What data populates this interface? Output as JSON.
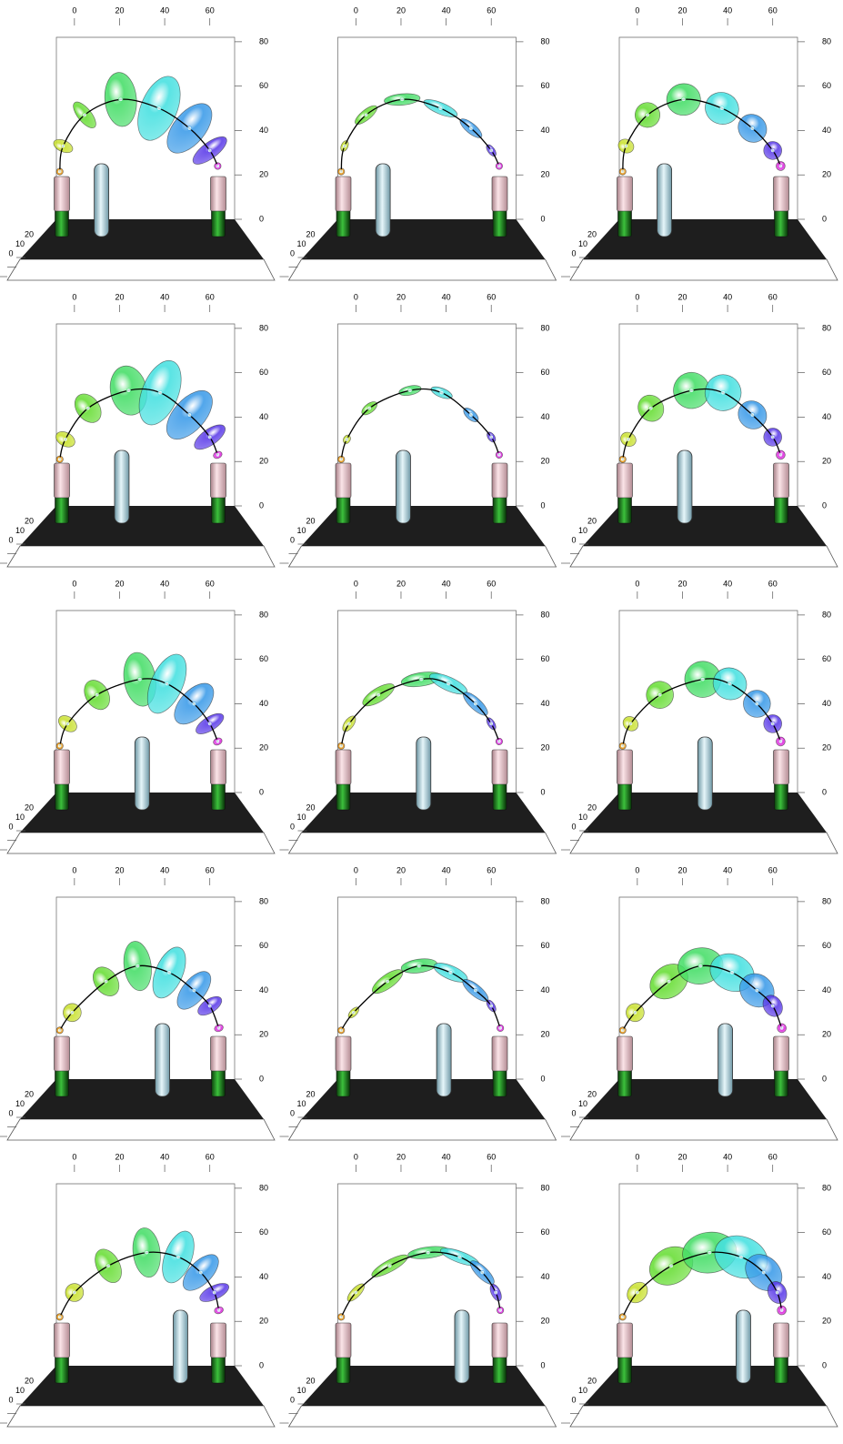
{
  "chart_data": [
    {
      "type": "scene3d",
      "xlim": [
        -8,
        71
      ],
      "zlim": [
        0,
        82
      ],
      "ylim": [
        0,
        20
      ],
      "xticks": [
        0,
        20,
        40,
        60
      ],
      "zticks": [
        0,
        20,
        40,
        60,
        80
      ],
      "yticks": [
        0,
        10,
        20
      ],
      "pillar_x": 12,
      "x": [
        -6.5,
        -5,
        4.5,
        20.5,
        37.5,
        51,
        60,
        63.5
      ],
      "z": [
        21.5,
        33,
        47,
        54,
        50,
        41,
        31,
        24
      ],
      "length": [
        1.5,
        2.5,
        3,
        7,
        8,
        7,
        3.5,
        1.5
      ],
      "width": [
        1.5,
        4.5,
        7,
        12,
        15,
        13,
        9,
        1.5
      ],
      "colors": [
        "#e8900a",
        "#c8e02a",
        "#66dd33",
        "#44dd66",
        "#44e0e0",
        "#3a9ae8",
        "#5a3ae8",
        "#dd22dd"
      ]
    },
    {
      "type": "scene3d",
      "xlim": [
        -8,
        71
      ],
      "zlim": [
        0,
        82
      ],
      "ylim": [
        0,
        20
      ],
      "xticks": [
        0,
        20,
        40,
        60
      ],
      "zticks": [
        0,
        20,
        40,
        60,
        80
      ],
      "yticks": [
        0,
        10,
        20
      ],
      "pillar_x": 12,
      "x": [
        -6.5,
        -5,
        4.5,
        20.5,
        37.5,
        51,
        60,
        63.5
      ],
      "z": [
        21.5,
        33,
        47,
        54,
        50,
        41,
        31,
        24
      ],
      "length": [
        1.5,
        2.5,
        6,
        8,
        8,
        6,
        3,
        1.5
      ],
      "width": [
        1.5,
        1.5,
        2.2,
        2.5,
        2.5,
        2.2,
        1.5,
        1.5
      ],
      "colors": [
        "#e8900a",
        "#c8e02a",
        "#66dd33",
        "#44dd66",
        "#44e0e0",
        "#3a9ae8",
        "#5a3ae8",
        "#dd22dd"
      ]
    },
    {
      "type": "scene3d",
      "xlim": [
        -8,
        71
      ],
      "zlim": [
        0,
        82
      ],
      "ylim": [
        0,
        20
      ],
      "xticks": [
        0,
        20,
        40,
        60
      ],
      "zticks": [
        0,
        20,
        40,
        60,
        80
      ],
      "yticks": [
        0,
        10,
        20
      ],
      "pillar_x": 12,
      "x": [
        -6.5,
        -5,
        4.5,
        20.5,
        37.5,
        51,
        60,
        63.5
      ],
      "z": [
        21.5,
        33,
        47,
        54,
        50,
        41,
        31,
        24
      ],
      "length": [
        1.5,
        3,
        5.5,
        7.5,
        7.5,
        6.5,
        4,
        2
      ],
      "width": [
        1.5,
        3.5,
        5.5,
        7,
        7,
        6,
        4,
        2
      ],
      "colors": [
        "#e8900a",
        "#c8e02a",
        "#66dd33",
        "#44dd66",
        "#44e0e0",
        "#3a9ae8",
        "#5a3ae8",
        "#dd22dd"
      ]
    },
    {
      "type": "scene3d",
      "xlim": [
        -8,
        71
      ],
      "zlim": [
        0,
        82
      ],
      "ylim": [
        0,
        20
      ],
      "xticks": [
        0,
        20,
        40,
        60
      ],
      "zticks": [
        0,
        20,
        40,
        60,
        80
      ],
      "yticks": [
        0,
        10,
        20
      ],
      "pillar_x": 21,
      "x": [
        -6.5,
        -4,
        6,
        24,
        38,
        51,
        60,
        63.5
      ],
      "z": [
        21,
        30,
        44,
        52,
        51,
        41,
        31,
        23
      ],
      "length": [
        1.5,
        3,
        5,
        8,
        8,
        7,
        3.5,
        1.5
      ],
      "width": [
        1.5,
        4.5,
        7,
        11,
        15,
        13,
        8,
        2
      ],
      "colors": [
        "#e8900a",
        "#c8e02a",
        "#66dd33",
        "#44dd66",
        "#44e0e0",
        "#3a9ae8",
        "#5a3ae8",
        "#dd22dd"
      ]
    },
    {
      "type": "scene3d",
      "xlim": [
        -8,
        71
      ],
      "zlim": [
        0,
        82
      ],
      "ylim": [
        0,
        20
      ],
      "xticks": [
        0,
        20,
        40,
        60
      ],
      "zticks": [
        0,
        20,
        40,
        60,
        80
      ],
      "yticks": [
        0,
        10,
        20
      ],
      "pillar_x": 21,
      "x": [
        -6.5,
        -4,
        6,
        24,
        38,
        51,
        60,
        63.5
      ],
      "z": [
        21,
        30,
        44,
        52,
        51,
        41,
        31,
        23
      ],
      "length": [
        1.5,
        2,
        4,
        5,
        5,
        4,
        2.5,
        1.5
      ],
      "width": [
        1.5,
        1.5,
        2,
        2,
        2,
        2,
        1.5,
        1.5
      ],
      "colors": [
        "#e8900a",
        "#c8e02a",
        "#66dd33",
        "#44dd66",
        "#44e0e0",
        "#3a9ae8",
        "#5a3ae8",
        "#dd22dd"
      ]
    },
    {
      "type": "scene3d",
      "xlim": [
        -8,
        71
      ],
      "zlim": [
        0,
        82
      ],
      "ylim": [
        0,
        20
      ],
      "xticks": [
        0,
        20,
        40,
        60
      ],
      "zticks": [
        0,
        20,
        40,
        60,
        80
      ],
      "yticks": [
        0,
        10,
        20
      ],
      "pillar_x": 21,
      "x": [
        -6.5,
        -4,
        6,
        24,
        38,
        51,
        60,
        63.5
      ],
      "z": [
        21,
        30,
        44,
        52,
        51,
        41,
        31,
        23
      ],
      "length": [
        1.5,
        3,
        5.5,
        8,
        8,
        6.5,
        4,
        2
      ],
      "width": [
        1.5,
        3.5,
        6,
        8,
        8,
        6,
        4,
        2
      ],
      "colors": [
        "#e8900a",
        "#c8e02a",
        "#66dd33",
        "#44dd66",
        "#44e0e0",
        "#3a9ae8",
        "#5a3ae8",
        "#dd22dd"
      ]
    },
    {
      "type": "scene3d",
      "xlim": [
        -8,
        71
      ],
      "zlim": [
        0,
        82
      ],
      "ylim": [
        0,
        20
      ],
      "xticks": [
        0,
        20,
        40,
        60
      ],
      "zticks": [
        0,
        20,
        40,
        60,
        80
      ],
      "yticks": [
        0,
        10,
        20
      ],
      "pillar_x": 30,
      "x": [
        -6.5,
        -3,
        10,
        29,
        41,
        53,
        60,
        63.5
      ],
      "z": [
        21,
        31,
        44,
        51,
        49,
        40,
        31,
        23
      ],
      "length": [
        1.5,
        3,
        5,
        7,
        7,
        6,
        3,
        1.5
      ],
      "width": [
        1.5,
        4.5,
        7,
        12,
        14,
        11,
        7,
        2
      ],
      "colors": [
        "#e8900a",
        "#c8e02a",
        "#66dd33",
        "#44dd66",
        "#44e0e0",
        "#3a9ae8",
        "#5a3ae8",
        "#dd22dd"
      ]
    },
    {
      "type": "scene3d",
      "xlim": [
        -8,
        71
      ],
      "zlim": [
        0,
        82
      ],
      "ylim": [
        0,
        20
      ],
      "xticks": [
        0,
        20,
        40,
        60
      ],
      "zticks": [
        0,
        20,
        40,
        60,
        80
      ],
      "yticks": [
        0,
        10,
        20
      ],
      "pillar_x": 30,
      "x": [
        -6.5,
        -3,
        10,
        29,
        41,
        53,
        60,
        63.5
      ],
      "z": [
        21,
        31,
        44,
        51,
        49,
        40,
        31,
        23
      ],
      "length": [
        1.5,
        4,
        8,
        9,
        9,
        7,
        3,
        1.5
      ],
      "width": [
        1.5,
        2,
        3,
        3,
        3,
        2.5,
        1.5,
        1.5
      ],
      "colors": [
        "#e8900a",
        "#c8e02a",
        "#66dd33",
        "#44dd66",
        "#44e0e0",
        "#3a9ae8",
        "#5a3ae8",
        "#dd22dd"
      ]
    },
    {
      "type": "scene3d",
      "xlim": [
        -8,
        71
      ],
      "zlim": [
        0,
        82
      ],
      "ylim": [
        0,
        20
      ],
      "xticks": [
        0,
        20,
        40,
        60
      ],
      "zticks": [
        0,
        20,
        40,
        60,
        80
      ],
      "yticks": [
        0,
        10,
        20
      ],
      "pillar_x": 30,
      "x": [
        -6.5,
        -3,
        10,
        29,
        41,
        53,
        60,
        63.5
      ],
      "z": [
        21,
        31,
        44,
        51,
        49,
        40,
        31,
        23
      ],
      "length": [
        1.5,
        3,
        6,
        8,
        7.5,
        6,
        4,
        2
      ],
      "width": [
        1.5,
        3.5,
        6,
        8,
        7,
        6,
        4,
        2
      ],
      "colors": [
        "#e8900a",
        "#c8e02a",
        "#66dd33",
        "#44dd66",
        "#44e0e0",
        "#3a9ae8",
        "#5a3ae8",
        "#dd22dd"
      ]
    },
    {
      "type": "scene3d",
      "xlim": [
        -8,
        71
      ],
      "zlim": [
        0,
        82
      ],
      "ylim": [
        0,
        20
      ],
      "xticks": [
        0,
        20,
        40,
        60
      ],
      "zticks": [
        0,
        20,
        40,
        60,
        80
      ],
      "yticks": [
        0,
        10,
        20
      ],
      "pillar_x": 39,
      "x": [
        -6.5,
        -1,
        14,
        28,
        42,
        53,
        60,
        64
      ],
      "z": [
        22,
        30,
        44,
        51,
        48,
        40,
        33,
        23
      ],
      "length": [
        1.5,
        4,
        5,
        6,
        6,
        5,
        3,
        1.5
      ],
      "width": [
        1.5,
        4,
        7,
        11,
        12,
        10,
        6,
        2
      ],
      "colors": [
        "#e8900a",
        "#c8e02a",
        "#66dd33",
        "#44dd66",
        "#44e0e0",
        "#3a9ae8",
        "#5a3ae8",
        "#dd22dd"
      ]
    },
    {
      "type": "scene3d",
      "xlim": [
        -8,
        71
      ],
      "zlim": [
        0,
        82
      ],
      "ylim": [
        0,
        20
      ],
      "xticks": [
        0,
        20,
        40,
        60
      ],
      "zticks": [
        0,
        20,
        40,
        60,
        80
      ],
      "yticks": [
        0,
        10,
        20
      ],
      "pillar_x": 39,
      "x": [
        -6.5,
        -1,
        14,
        28,
        42,
        53,
        60,
        64
      ],
      "z": [
        22,
        30,
        44,
        51,
        48,
        40,
        33,
        23
      ],
      "length": [
        1.5,
        3,
        8,
        8,
        8,
        7,
        3,
        1.5
      ],
      "width": [
        1.5,
        1.5,
        3,
        3,
        3,
        2.5,
        1.5,
        1.5
      ],
      "colors": [
        "#e8900a",
        "#c8e02a",
        "#66dd33",
        "#44dd66",
        "#44e0e0",
        "#3a9ae8",
        "#5a3ae8",
        "#dd22dd"
      ]
    },
    {
      "type": "scene3d",
      "xlim": [
        -8,
        71
      ],
      "zlim": [
        0,
        82
      ],
      "ylim": [
        0,
        20
      ],
      "xticks": [
        0,
        20,
        40,
        60
      ],
      "zticks": [
        0,
        20,
        40,
        60,
        80
      ],
      "yticks": [
        0,
        10,
        20
      ],
      "pillar_x": 39,
      "x": [
        -6.5,
        -1,
        14,
        28,
        42,
        53,
        60,
        64
      ],
      "z": [
        22,
        30,
        44,
        51,
        48,
        40,
        33,
        23
      ],
      "length": [
        1.5,
        4,
        9,
        10,
        10,
        8,
        5,
        2
      ],
      "width": [
        1.5,
        4,
        7,
        8,
        8,
        7,
        4,
        2
      ],
      "colors": [
        "#e8900a",
        "#c8e02a",
        "#66dd33",
        "#44dd66",
        "#44e0e0",
        "#3a9ae8",
        "#5a3ae8",
        "#dd22dd"
      ]
    },
    {
      "type": "scene3d",
      "xlim": [
        -8,
        71
      ],
      "zlim": [
        0,
        82
      ],
      "ylim": [
        0,
        20
      ],
      "xticks": [
        0,
        20,
        40,
        60
      ],
      "zticks": [
        0,
        20,
        40,
        60,
        80
      ],
      "yticks": [
        0,
        10,
        20
      ],
      "pillar_x": 47,
      "x": [
        -6.5,
        0,
        15,
        32,
        46,
        56,
        62,
        64
      ],
      "z": [
        22,
        33,
        45,
        51,
        49,
        42,
        33,
        25
      ],
      "length": [
        1.5,
        4,
        5,
        6,
        6,
        5,
        3,
        1.5
      ],
      "width": [
        1.5,
        4,
        8,
        11,
        12,
        10,
        7,
        2
      ],
      "colors": [
        "#e8900a",
        "#c8e02a",
        "#66dd33",
        "#44dd66",
        "#44e0e0",
        "#3a9ae8",
        "#5a3ae8",
        "#dd22dd"
      ]
    },
    {
      "type": "scene3d",
      "xlim": [
        -8,
        71
      ],
      "zlim": [
        0,
        82
      ],
      "ylim": [
        0,
        20
      ],
      "xticks": [
        0,
        20,
        40,
        60
      ],
      "zticks": [
        0,
        20,
        40,
        60,
        80
      ],
      "yticks": [
        0,
        10,
        20
      ],
      "pillar_x": 47,
      "x": [
        -6.5,
        0,
        15,
        32,
        46,
        56,
        62,
        64
      ],
      "z": [
        22,
        33,
        45,
        51,
        49,
        42,
        33,
        25
      ],
      "length": [
        1.5,
        5,
        9,
        9,
        9,
        7,
        4,
        1.5
      ],
      "width": [
        1.5,
        2,
        2.5,
        2.5,
        2.5,
        2.5,
        2,
        1.5
      ],
      "colors": [
        "#e8900a",
        "#c8e02a",
        "#66dd33",
        "#44dd66",
        "#44e0e0",
        "#3a9ae8",
        "#5a3ae8",
        "#dd22dd"
      ]
    },
    {
      "type": "scene3d",
      "xlim": [
        -8,
        71
      ],
      "zlim": [
        0,
        82
      ],
      "ylim": [
        0,
        20
      ],
      "xticks": [
        0,
        20,
        40,
        60
      ],
      "zticks": [
        0,
        20,
        40,
        60,
        80
      ],
      "yticks": [
        0,
        10,
        20
      ],
      "pillar_x": 47,
      "x": [
        -6.5,
        0,
        15,
        32,
        46,
        56,
        62,
        64
      ],
      "z": [
        22,
        33,
        45,
        51,
        49,
        42,
        33,
        25
      ],
      "length": [
        1.5,
        5,
        10,
        12,
        12,
        9,
        5,
        2
      ],
      "width": [
        1.5,
        4,
        8,
        9,
        9,
        7,
        4,
        2
      ],
      "colors": [
        "#e8900a",
        "#c8e02a",
        "#66dd33",
        "#44dd66",
        "#44e0e0",
        "#3a9ae8",
        "#5a3ae8",
        "#dd22dd"
      ]
    }
  ]
}
